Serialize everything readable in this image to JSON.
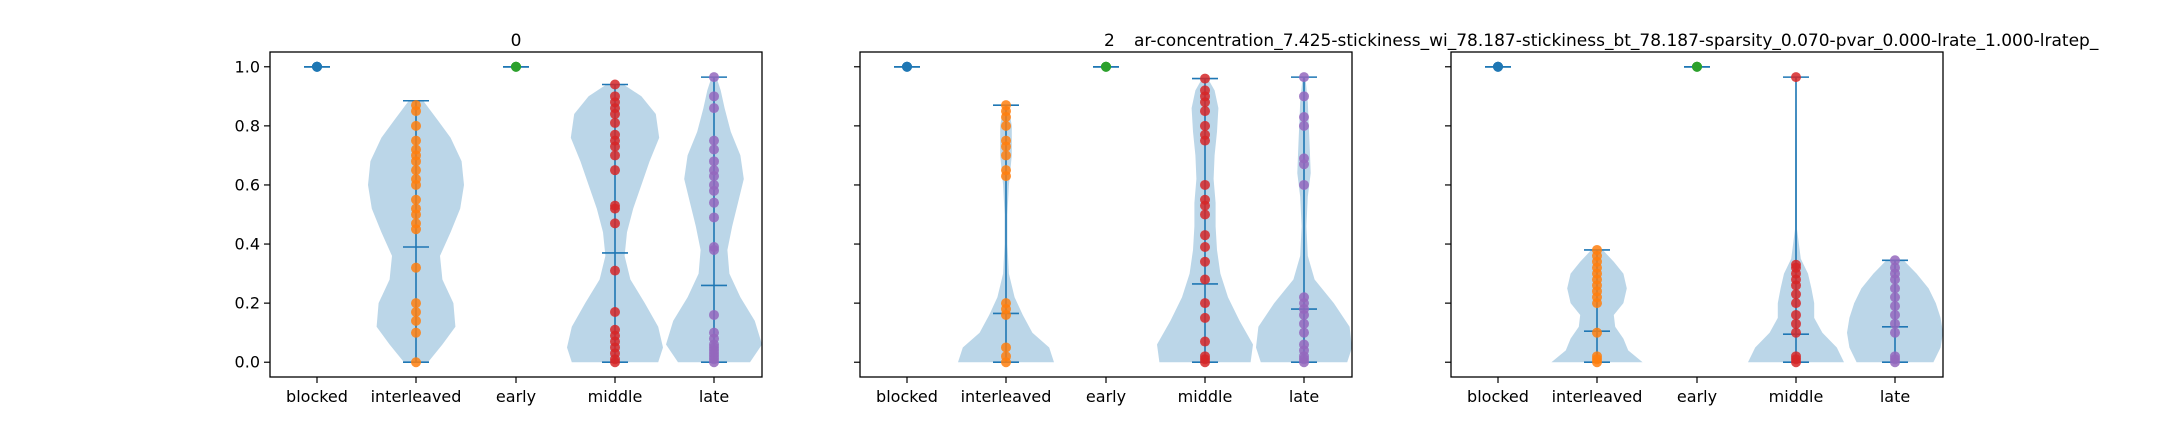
{
  "figure": {
    "titles": [
      "0",
      "2",
      "ar-concentration_7.425-stickiness_wi_78.187-stickiness_bt_78.187-sparsity_0.070-pvar_0.000-lrate_1.000-lratep_"
    ]
  },
  "colors": {
    "violin_fill": "#1f77b4",
    "stat_lines": "#1f77b4",
    "blocked": "#1f77b4",
    "interleaved": "#ff7f0e",
    "early": "#2ca02c",
    "middle": "#d62728",
    "late": "#9467bd"
  },
  "chart_data": [
    {
      "type": "violin",
      "title": "0",
      "categories": [
        "blocked",
        "interleaved",
        "early",
        "middle",
        "late"
      ],
      "ylim": [
        -0.05,
        1.05
      ],
      "yticks": [
        0.0,
        0.2,
        0.4,
        0.6,
        0.8,
        1.0
      ],
      "ytick_labels": [
        "0.0",
        "0.2",
        "0.4",
        "0.6",
        "0.8",
        "1.0"
      ],
      "show_ytick_labels": true,
      "grid": false,
      "series": [
        {
          "category": "blocked",
          "min": 1.0,
          "max": 1.0,
          "mean": 1.0,
          "points": [
            1.0,
            1.0,
            1.0,
            1.0
          ],
          "density": []
        },
        {
          "category": "interleaved",
          "min": 0.0,
          "max": 0.885,
          "mean": 0.39,
          "points": [
            0.0,
            0.1,
            0.14,
            0.17,
            0.2,
            0.32,
            0.45,
            0.47,
            0.5,
            0.52,
            0.55,
            0.6,
            0.62,
            0.65,
            0.68,
            0.7,
            0.72,
            0.75,
            0.8,
            0.85,
            0.87
          ],
          "density": [
            [
              0.0,
              0.25
            ],
            [
              0.06,
              0.55
            ],
            [
              0.12,
              0.82
            ],
            [
              0.2,
              0.78
            ],
            [
              0.28,
              0.55
            ],
            [
              0.36,
              0.5
            ],
            [
              0.44,
              0.72
            ],
            [
              0.52,
              0.92
            ],
            [
              0.6,
              1.0
            ],
            [
              0.68,
              0.95
            ],
            [
              0.76,
              0.72
            ],
            [
              0.82,
              0.45
            ],
            [
              0.885,
              0.15
            ]
          ]
        },
        {
          "category": "early",
          "min": 1.0,
          "max": 1.0,
          "mean": 1.0,
          "points": [
            1.0,
            1.0,
            1.0
          ],
          "density": []
        },
        {
          "category": "middle",
          "min": 0.0,
          "max": 0.94,
          "mean": 0.37,
          "points": [
            0.0,
            0.01,
            0.03,
            0.05,
            0.07,
            0.09,
            0.11,
            0.17,
            0.31,
            0.47,
            0.52,
            0.53,
            0.65,
            0.7,
            0.73,
            0.75,
            0.77,
            0.81,
            0.84,
            0.86,
            0.88,
            0.9,
            0.94
          ],
          "density": [
            [
              0.0,
              0.9
            ],
            [
              0.05,
              1.0
            ],
            [
              0.12,
              0.9
            ],
            [
              0.2,
              0.62
            ],
            [
              0.28,
              0.32
            ],
            [
              0.36,
              0.2
            ],
            [
              0.44,
              0.25
            ],
            [
              0.52,
              0.38
            ],
            [
              0.6,
              0.55
            ],
            [
              0.68,
              0.72
            ],
            [
              0.76,
              0.92
            ],
            [
              0.84,
              0.85
            ],
            [
              0.9,
              0.55
            ],
            [
              0.94,
              0.18
            ]
          ]
        },
        {
          "category": "late",
          "min": 0.0,
          "max": 0.965,
          "mean": 0.26,
          "points": [
            0.0,
            0.01,
            0.02,
            0.03,
            0.04,
            0.05,
            0.06,
            0.08,
            0.1,
            0.16,
            0.38,
            0.39,
            0.49,
            0.54,
            0.58,
            0.6,
            0.63,
            0.65,
            0.68,
            0.72,
            0.75,
            0.86,
            0.9,
            0.965
          ],
          "density": [
            [
              0.0,
              0.75
            ],
            [
              0.06,
              1.0
            ],
            [
              0.14,
              0.85
            ],
            [
              0.22,
              0.55
            ],
            [
              0.3,
              0.32
            ],
            [
              0.38,
              0.28
            ],
            [
              0.46,
              0.38
            ],
            [
              0.54,
              0.5
            ],
            [
              0.62,
              0.62
            ],
            [
              0.7,
              0.55
            ],
            [
              0.78,
              0.35
            ],
            [
              0.86,
              0.22
            ],
            [
              0.92,
              0.14
            ],
            [
              0.965,
              0.05
            ]
          ]
        }
      ]
    },
    {
      "type": "violin",
      "title": "2",
      "categories": [
        "blocked",
        "interleaved",
        "early",
        "middle",
        "late"
      ],
      "ylim": [
        -0.05,
        1.05
      ],
      "yticks": [
        0.0,
        0.2,
        0.4,
        0.6,
        0.8,
        1.0
      ],
      "ytick_labels": [
        "0.0",
        "0.2",
        "0.4",
        "0.6",
        "0.8",
        "1.0"
      ],
      "show_ytick_labels": false,
      "grid": false,
      "series": [
        {
          "category": "blocked",
          "min": 1.0,
          "max": 1.0,
          "mean": 1.0,
          "points": [
            1.0,
            1.0,
            1.0
          ],
          "density": []
        },
        {
          "category": "interleaved",
          "min": 0.0,
          "max": 0.87,
          "mean": 0.165,
          "points": [
            0.0,
            0.02,
            0.05,
            0.16,
            0.18,
            0.2,
            0.63,
            0.65,
            0.7,
            0.73,
            0.75,
            0.8,
            0.83,
            0.85,
            0.87
          ],
          "density": [
            [
              0.0,
              1.0
            ],
            [
              0.05,
              0.9
            ],
            [
              0.1,
              0.55
            ],
            [
              0.16,
              0.35
            ],
            [
              0.22,
              0.18
            ],
            [
              0.3,
              0.06
            ],
            [
              0.4,
              0.03
            ],
            [
              0.5,
              0.03
            ],
            [
              0.6,
              0.06
            ],
            [
              0.7,
              0.12
            ],
            [
              0.8,
              0.12
            ],
            [
              0.87,
              0.05
            ]
          ]
        },
        {
          "category": "early",
          "min": 1.0,
          "max": 1.0,
          "mean": 1.0,
          "points": [
            1.0,
            1.0,
            1.0
          ],
          "density": []
        },
        {
          "category": "middle",
          "min": 0.0,
          "max": 0.96,
          "mean": 0.265,
          "points": [
            0.0,
            0.01,
            0.02,
            0.07,
            0.15,
            0.2,
            0.28,
            0.34,
            0.39,
            0.43,
            0.5,
            0.53,
            0.55,
            0.6,
            0.75,
            0.77,
            0.8,
            0.85,
            0.88,
            0.9,
            0.92,
            0.96
          ],
          "density": [
            [
              0.0,
              0.95
            ],
            [
              0.06,
              1.0
            ],
            [
              0.14,
              0.72
            ],
            [
              0.22,
              0.48
            ],
            [
              0.3,
              0.32
            ],
            [
              0.38,
              0.25
            ],
            [
              0.46,
              0.22
            ],
            [
              0.54,
              0.22
            ],
            [
              0.62,
              0.18
            ],
            [
              0.7,
              0.2
            ],
            [
              0.78,
              0.25
            ],
            [
              0.86,
              0.28
            ],
            [
              0.92,
              0.2
            ],
            [
              0.96,
              0.06
            ]
          ]
        },
        {
          "category": "late",
          "min": 0.0,
          "max": 0.965,
          "mean": 0.18,
          "points": [
            0.0,
            0.01,
            0.02,
            0.04,
            0.06,
            0.1,
            0.13,
            0.16,
            0.18,
            0.2,
            0.22,
            0.6,
            0.67,
            0.69,
            0.8,
            0.83,
            0.9,
            0.965
          ],
          "density": [
            [
              0.0,
              0.9
            ],
            [
              0.05,
              1.0
            ],
            [
              0.12,
              0.95
            ],
            [
              0.2,
              0.62
            ],
            [
              0.28,
              0.22
            ],
            [
              0.36,
              0.08
            ],
            [
              0.46,
              0.05
            ],
            [
              0.56,
              0.08
            ],
            [
              0.64,
              0.14
            ],
            [
              0.72,
              0.12
            ],
            [
              0.8,
              0.1
            ],
            [
              0.88,
              0.08
            ],
            [
              0.965,
              0.03
            ]
          ]
        }
      ]
    },
    {
      "type": "violin",
      "title": "",
      "categories": [
        "blocked",
        "interleaved",
        "early",
        "middle",
        "late"
      ],
      "ylim": [
        -0.05,
        1.05
      ],
      "yticks": [
        0.0,
        0.2,
        0.4,
        0.6,
        0.8,
        1.0
      ],
      "ytick_labels": [
        "0.0",
        "0.2",
        "0.4",
        "0.6",
        "0.8",
        "1.0"
      ],
      "show_ytick_labels": false,
      "grid": false,
      "series": [
        {
          "category": "blocked",
          "min": 1.0,
          "max": 1.0,
          "mean": 1.0,
          "points": [
            1.0,
            1.0,
            1.0
          ],
          "density": []
        },
        {
          "category": "interleaved",
          "min": 0.0,
          "max": 0.38,
          "mean": 0.105,
          "points": [
            0.0,
            0.01,
            0.02,
            0.1,
            0.2,
            0.22,
            0.24,
            0.26,
            0.28,
            0.3,
            0.32,
            0.34,
            0.36,
            0.38
          ],
          "density": [
            [
              0.0,
              0.95
            ],
            [
              0.04,
              0.65
            ],
            [
              0.08,
              0.55
            ],
            [
              0.12,
              0.38
            ],
            [
              0.16,
              0.35
            ],
            [
              0.2,
              0.55
            ],
            [
              0.25,
              0.62
            ],
            [
              0.3,
              0.55
            ],
            [
              0.34,
              0.35
            ],
            [
              0.38,
              0.12
            ]
          ]
        },
        {
          "category": "early",
          "min": 1.0,
          "max": 1.0,
          "mean": 1.0,
          "points": [
            1.0,
            1.0,
            1.0
          ],
          "density": []
        },
        {
          "category": "middle",
          "min": 0.0,
          "max": 0.965,
          "mean": 0.095,
          "points": [
            0.0,
            0.01,
            0.02,
            0.1,
            0.13,
            0.16,
            0.2,
            0.23,
            0.26,
            0.28,
            0.3,
            0.32,
            0.33,
            0.965
          ],
          "density": [
            [
              0.0,
              1.0
            ],
            [
              0.05,
              0.85
            ],
            [
              0.1,
              0.55
            ],
            [
              0.15,
              0.38
            ],
            [
              0.2,
              0.38
            ],
            [
              0.25,
              0.32
            ],
            [
              0.3,
              0.25
            ],
            [
              0.35,
              0.1
            ],
            [
              0.45,
              0.02
            ],
            [
              0.7,
              0.02
            ],
            [
              0.965,
              0.01
            ]
          ]
        },
        {
          "category": "late",
          "min": 0.0,
          "max": 0.345,
          "mean": 0.12,
          "points": [
            0.0,
            0.01,
            0.02,
            0.1,
            0.13,
            0.16,
            0.19,
            0.22,
            0.25,
            0.28,
            0.3,
            0.32,
            0.345
          ],
          "density": [
            [
              0.0,
              0.8
            ],
            [
              0.05,
              0.95
            ],
            [
              0.1,
              1.0
            ],
            [
              0.15,
              0.95
            ],
            [
              0.2,
              0.85
            ],
            [
              0.25,
              0.7
            ],
            [
              0.3,
              0.45
            ],
            [
              0.345,
              0.18
            ]
          ]
        }
      ]
    }
  ]
}
